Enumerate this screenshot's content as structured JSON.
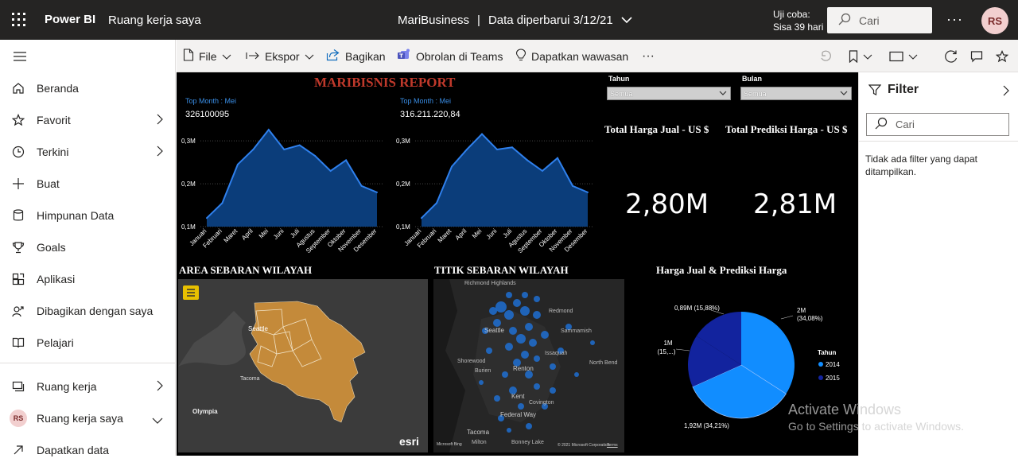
{
  "topbar": {
    "brand": "Power BI",
    "workspace": "Ruang kerja saya",
    "report_name": "MariBusiness",
    "separator": "|",
    "updated": "Data diperbarui 3/12/21",
    "trial_line1": "Uji coba:",
    "trial_line2": "Sisa 39 hari",
    "search_placeholder": "Cari",
    "more": "···",
    "avatar_initials": "RS"
  },
  "sidebar": {
    "items": [
      {
        "label": "Beranda",
        "icon": "home-icon"
      },
      {
        "label": "Favorit",
        "icon": "star-icon"
      },
      {
        "label": "Terkini",
        "icon": "clock-icon"
      },
      {
        "label": "Buat",
        "icon": "plus-icon"
      },
      {
        "label": "Himpunan Data",
        "icon": "database-icon"
      },
      {
        "label": "Goals",
        "icon": "trophy-icon"
      },
      {
        "label": "Aplikasi",
        "icon": "apps-icon"
      },
      {
        "label": "Dibagikan dengan saya",
        "icon": "shared-icon"
      },
      {
        "label": "Pelajari",
        "icon": "book-icon"
      }
    ],
    "bottom": [
      {
        "label": "Ruang kerja",
        "icon": "workspaces-icon"
      },
      {
        "label": "Ruang kerja saya",
        "avatar": "RS"
      },
      {
        "label": "Dapatkan data",
        "icon": "arrow-icon"
      }
    ]
  },
  "toolbar": {
    "file": "File",
    "export": "Ekspor",
    "share": "Bagikan",
    "teams": "Obrolan di Teams",
    "insights": "Dapatkan wawasan",
    "more": "···"
  },
  "report": {
    "title": "MARIBISNIS REPORT",
    "chart1_top_label": "Top Month : Mei",
    "chart1_top_value": "326100095",
    "chart2_top_label": "Top Month : Mei",
    "chart2_top_value": "316.211.220,84",
    "slicer_tahun_label": "Tahun",
    "slicer_tahun_value": "Semua",
    "slicer_bulan_label": "Bulan",
    "slicer_bulan_value": "Semua",
    "kpi1_title": "Total Harga Jual - US $",
    "kpi1_value": "2,80M",
    "kpi2_title": "Total Prediksi Harga - US $",
    "kpi2_value": "2,81M",
    "map1_title": "AREA SEBARAN WILAYAH",
    "map2_title": "TITIK SEBARAN WILAYAH",
    "pie_title": "Harga Jual & Prediksi Harga",
    "map1_labels": {
      "seattle": "Seattle",
      "tacoma": "Tacoma",
      "olympia": "Olympia",
      "esri": "esri"
    },
    "map2_labels": {
      "richmond": "Richmond Highlands",
      "seattle": "Seattle",
      "redmond": "Redmond",
      "sammamish": "Sammamish",
      "issaquah": "Issaquah",
      "renton": "Renton",
      "burien": "Burien",
      "shorewood": "Shorewood",
      "kent": "Kent",
      "federal": "Federal Way",
      "covington": "Covington",
      "tacoma": "Tacoma",
      "northbend": "North Bend",
      "bonney": "Bonney Lake",
      "milton": "Milton",
      "credit": "© 2021 Microsoft Corporation",
      "terms": "Terms",
      "ms_logo": "Microsoft Bing"
    },
    "pie_labels": {
      "slice_a": "2M",
      "slice_a_pct": "(34,08%)",
      "slice_b": "1,92M (34,21%)",
      "slice_c": "0,89M (15,88%)",
      "slice_d1": "1M",
      "slice_d2": "(15,...)"
    }
  },
  "chart_data": [
    {
      "type": "area",
      "categories": [
        "Januari",
        "Februari",
        "Maret",
        "April",
        "Mei",
        "Juni",
        "Juli",
        "Agustus",
        "September",
        "Oktober",
        "November",
        "Desember"
      ],
      "values": [
        0.12,
        0.155,
        0.245,
        0.28,
        0.326,
        0.28,
        0.29,
        0.265,
        0.23,
        0.255,
        0.195,
        0.18
      ],
      "yticks": [
        "0,1M",
        "0,2M",
        "0,3M"
      ],
      "ylim": [
        0.1,
        0.33
      ],
      "color": "#2f80ed"
    },
    {
      "type": "area",
      "categories": [
        "Januari",
        "Februari",
        "Maret",
        "April",
        "Mei",
        "Juni",
        "Juli",
        "Agustus",
        "September",
        "Oktober",
        "November",
        "Desember"
      ],
      "values": [
        0.12,
        0.155,
        0.24,
        0.28,
        0.316,
        0.28,
        0.285,
        0.255,
        0.23,
        0.26,
        0.195,
        0.18
      ],
      "yticks": [
        "0,1M",
        "0,2M",
        "0,3M"
      ],
      "ylim": [
        0.1,
        0.33
      ],
      "color": "#2f80ed"
    },
    {
      "type": "pie",
      "title": "Harga Jual & Prediksi Harga",
      "legend_title": "Tahun",
      "legend": [
        {
          "name": "2014",
          "color": "#118dff"
        },
        {
          "name": "2015",
          "color": "#12239e"
        }
      ],
      "slices": [
        {
          "value": 34.08,
          "color": "#118dff"
        },
        {
          "value": 34.21,
          "color": "#118dff"
        },
        {
          "value": 15.88,
          "color": "#12239e"
        },
        {
          "value": 15.83,
          "color": "#12239e"
        }
      ]
    }
  ],
  "filter": {
    "title": "Filter",
    "search_placeholder": "Cari",
    "empty_message": "Tidak ada filter yang dapat ditampilkan."
  },
  "watermark": {
    "line1": "Activate Windows",
    "line2": "Go to Settings to activate Windows."
  }
}
